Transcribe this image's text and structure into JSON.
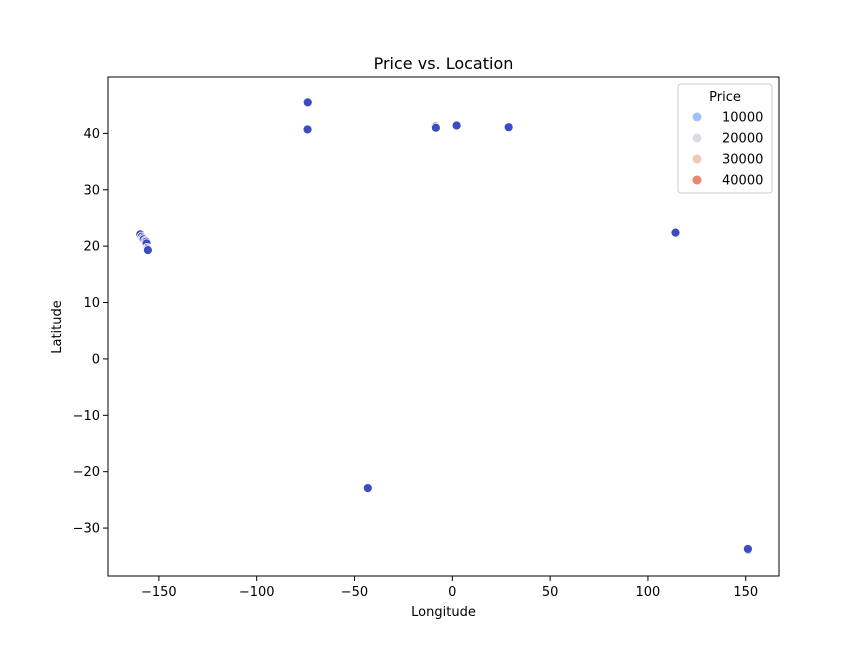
{
  "chart_data": {
    "type": "scatter",
    "title": "Price vs. Location",
    "xlabel": "Longitude",
    "ylabel": "Latitude",
    "xlim": [
      -176,
      167
    ],
    "ylim": [
      -38.5,
      50
    ],
    "xticks": [
      -150,
      -100,
      -50,
      0,
      50,
      100,
      150
    ],
    "yticks": [
      -30,
      -20,
      -10,
      0,
      10,
      20,
      30,
      40
    ],
    "grid": false,
    "legend": {
      "title": "Price",
      "placement": "top-right",
      "entries": [
        {
          "label": "10000",
          "color": "#a3bff8"
        },
        {
          "label": "20000",
          "color": "#d8dce7"
        },
        {
          "label": "30000",
          "color": "#f3c8b3"
        },
        {
          "label": "40000",
          "color": "#e9866d"
        }
      ]
    },
    "point_color": "#3b4cc0",
    "points": [
      {
        "x": -73.9,
        "y": 45.5
      },
      {
        "x": -74.0,
        "y": 40.7
      },
      {
        "x": -8.6,
        "y": 41.2
      },
      {
        "x": -8.4,
        "y": 41.0
      },
      {
        "x": 2.2,
        "y": 41.4
      },
      {
        "x": 29.0,
        "y": 41.0
      },
      {
        "x": 28.8,
        "y": 41.1
      },
      {
        "x": 114.2,
        "y": 22.3
      },
      {
        "x": 114.1,
        "y": 22.4
      },
      {
        "x": -159.5,
        "y": 22.1
      },
      {
        "x": -158.8,
        "y": 21.7
      },
      {
        "x": -158.2,
        "y": 21.4
      },
      {
        "x": -157.8,
        "y": 21.2
      },
      {
        "x": -157.0,
        "y": 20.9
      },
      {
        "x": -156.5,
        "y": 20.8
      },
      {
        "x": -156.3,
        "y": 20.5
      },
      {
        "x": -156.0,
        "y": 19.7
      },
      {
        "x": -155.8,
        "y": 19.5
      },
      {
        "x": -155.6,
        "y": 19.3
      },
      {
        "x": -43.2,
        "y": -22.9
      },
      {
        "x": 151.2,
        "y": -33.9
      },
      {
        "x": 151.1,
        "y": -33.7
      }
    ]
  }
}
